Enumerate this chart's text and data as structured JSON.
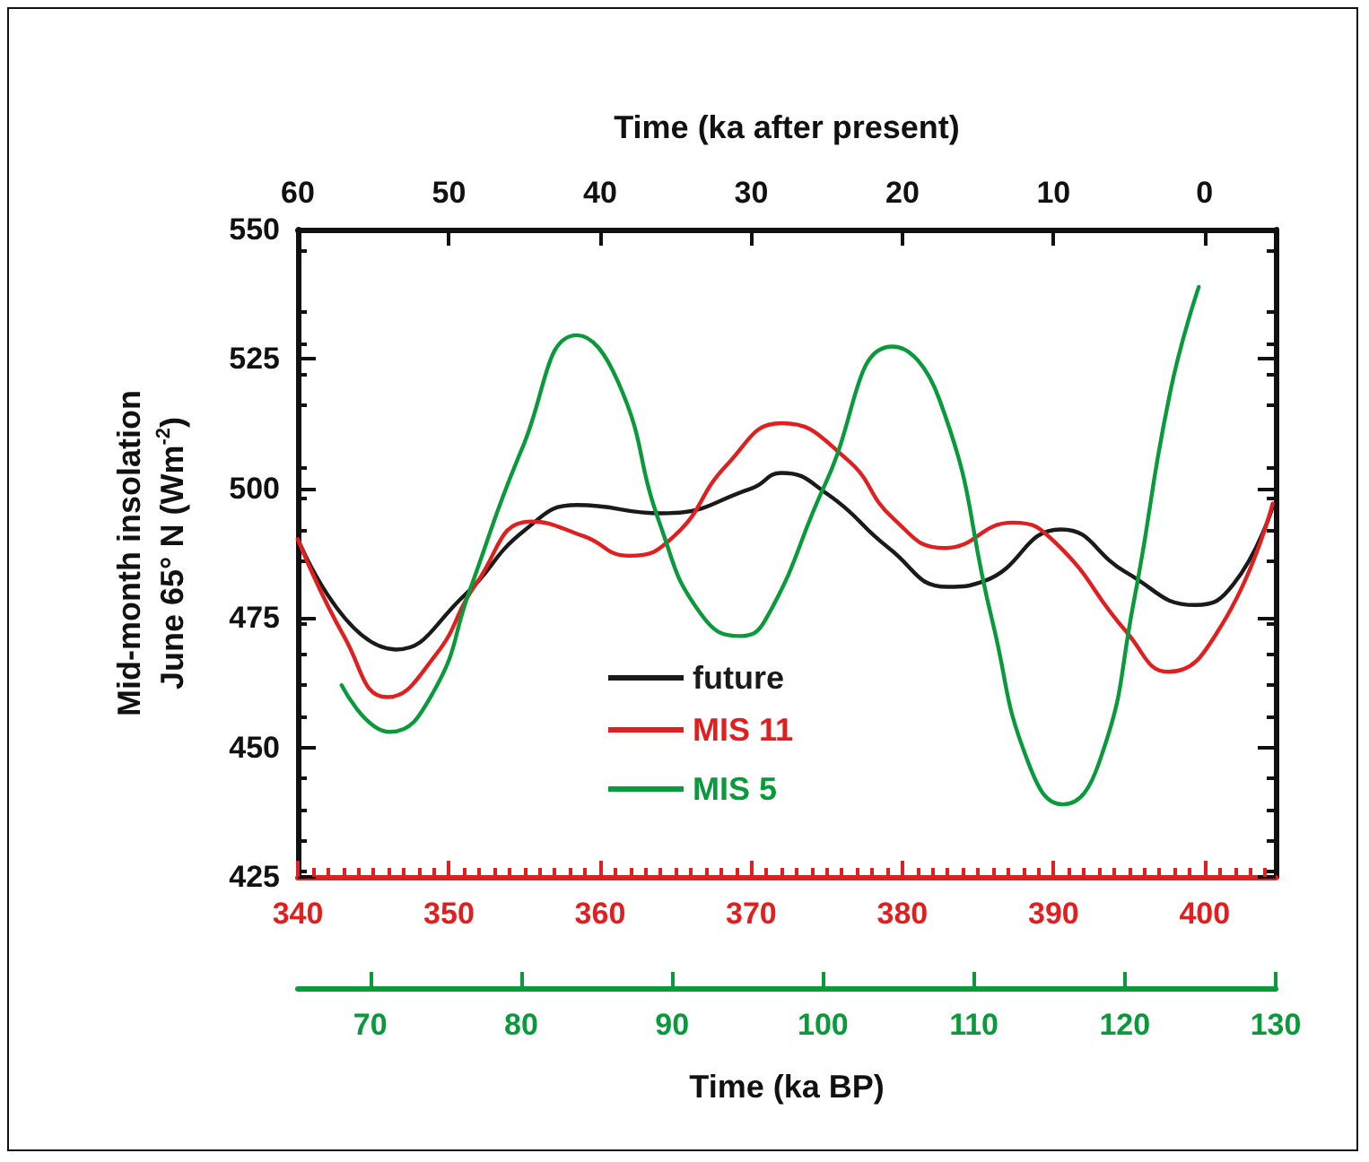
{
  "chart_data": [
    {
      "type": "line",
      "x2label": "Time (ka after present)",
      "ylabel": "Mid-month insolation\nJune 65° N (Wm$^{-2}$)",
      "xlim": [
        340,
        404.7
      ],
      "xticks": [
        340,
        350,
        360,
        370,
        380,
        390,
        400
      ],
      "x2lim": [
        60,
        -4.7
      ],
      "x2ticks": [
        60,
        50,
        40,
        30,
        20,
        10,
        0
      ],
      "ylim": [
        425,
        550
      ],
      "yticks": [
        425,
        450,
        475,
        500,
        525,
        550
      ],
      "grid": false,
      "legend": "bottom left",
      "series": [
        {
          "name": "future",
          "color": "#1a1a1a",
          "axis": "x2",
          "x": [
            60,
            53.5,
            49,
            45,
            41.5,
            35.9,
            30,
            28,
            24.9,
            20.9,
            17,
            14.6,
            9.5,
            5.2,
            0.6,
            -1.9,
            -4.5
          ],
          "values": [
            490.2,
            468.9,
            479.3,
            491.9,
            496.8,
            495.2,
            500,
            503,
            498.8,
            488.5,
            481,
            482.1,
            492.1,
            483.8,
            477.5,
            481.5,
            496.5
          ]
        },
        {
          "name": "MIS 11",
          "color": "#e02020",
          "x": [
            340,
            343.1,
            345.9,
            349.1,
            351.8,
            355.4,
            358.9,
            361.9,
            364.9,
            368.4,
            372,
            376.3,
            379.4,
            382.8,
            387.3,
            390.1,
            394.8,
            397.6,
            401.1,
            404.5
          ],
          "values": [
            490.2,
            471.2,
            459.7,
            467.8,
            481.6,
            493.6,
            490.8,
            487,
            490.8,
            504.6,
            512.6,
            505.7,
            494.2,
            488.5,
            493.4,
            489.6,
            472.4,
            464.6,
            473.5,
            497.1
          ]
        }
      ]
    },
    {
      "type": "line",
      "xlabel": "Time (ka BP)",
      "xlim": [
        65.2,
        130
      ],
      "xticks": [
        70,
        80,
        90,
        100,
        110,
        120,
        130
      ],
      "ylim": [
        425,
        550
      ],
      "tick_labels": "x",
      "grid": false,
      "legend": "bottom left",
      "series": [
        {
          "name": "MIS 5",
          "color": "#0a9a3c",
          "x": [
            68.1,
            71.3,
            74.2,
            76.6,
            80.1,
            83.7,
            86.4,
            89.2,
            91.9,
            94.5,
            96.2,
            100.2,
            104.6,
            107.7,
            111.2,
            113.6,
            115.9,
            118.3,
            120.6,
            123,
            124.9
          ],
          "values": [
            462,
            453,
            460.8,
            480.4,
            508,
            529.6,
            520.7,
            493.1,
            475.8,
            471.5,
            474.7,
            501.2,
            527.4,
            517.3,
            474.7,
            447.1,
            439,
            447.1,
            478.2,
            518.5,
            538.9
          ]
        }
      ]
    }
  ]
}
